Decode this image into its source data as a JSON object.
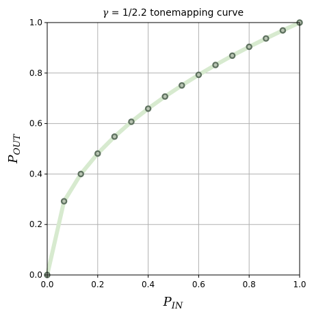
{
  "chart_data": {
    "type": "line",
    "title": "γ = 1/2.2 tonemapping curve",
    "title_gamma": "γ",
    "title_rest": " = 1/2.2 tonemapping curve",
    "xlabel": "P_IN",
    "xlabel_main": "P",
    "xlabel_sub": "IN",
    "ylabel": "P_OUT",
    "ylabel_main": "P",
    "ylabel_sub": "OUT",
    "xlim": [
      0.0,
      1.0
    ],
    "ylim": [
      0.0,
      1.0
    ],
    "xticks": [
      "0.0",
      "0.2",
      "0.4",
      "0.6",
      "0.8",
      "1.0"
    ],
    "yticks": [
      "0.0",
      "0.2",
      "0.4",
      "0.6",
      "0.8",
      "1.0"
    ],
    "grid": true,
    "gamma": 0.4545,
    "series": [
      {
        "x": [
          0.0,
          0.0667,
          0.1333,
          0.2,
          0.2667,
          0.3333,
          0.4,
          0.4667,
          0.5333,
          0.6,
          0.6667,
          0.7333,
          0.8,
          0.8667,
          0.9333,
          1.0
        ],
        "y": [
          0.0,
          0.292,
          0.4,
          0.481,
          0.548,
          0.607,
          0.659,
          0.707,
          0.751,
          0.793,
          0.832,
          0.869,
          0.904,
          0.937,
          0.969,
          1.0
        ],
        "line_color": "#d7eacf",
        "marker_face": "#b8c4b2",
        "marker_edge": "#5f7260"
      }
    ]
  }
}
